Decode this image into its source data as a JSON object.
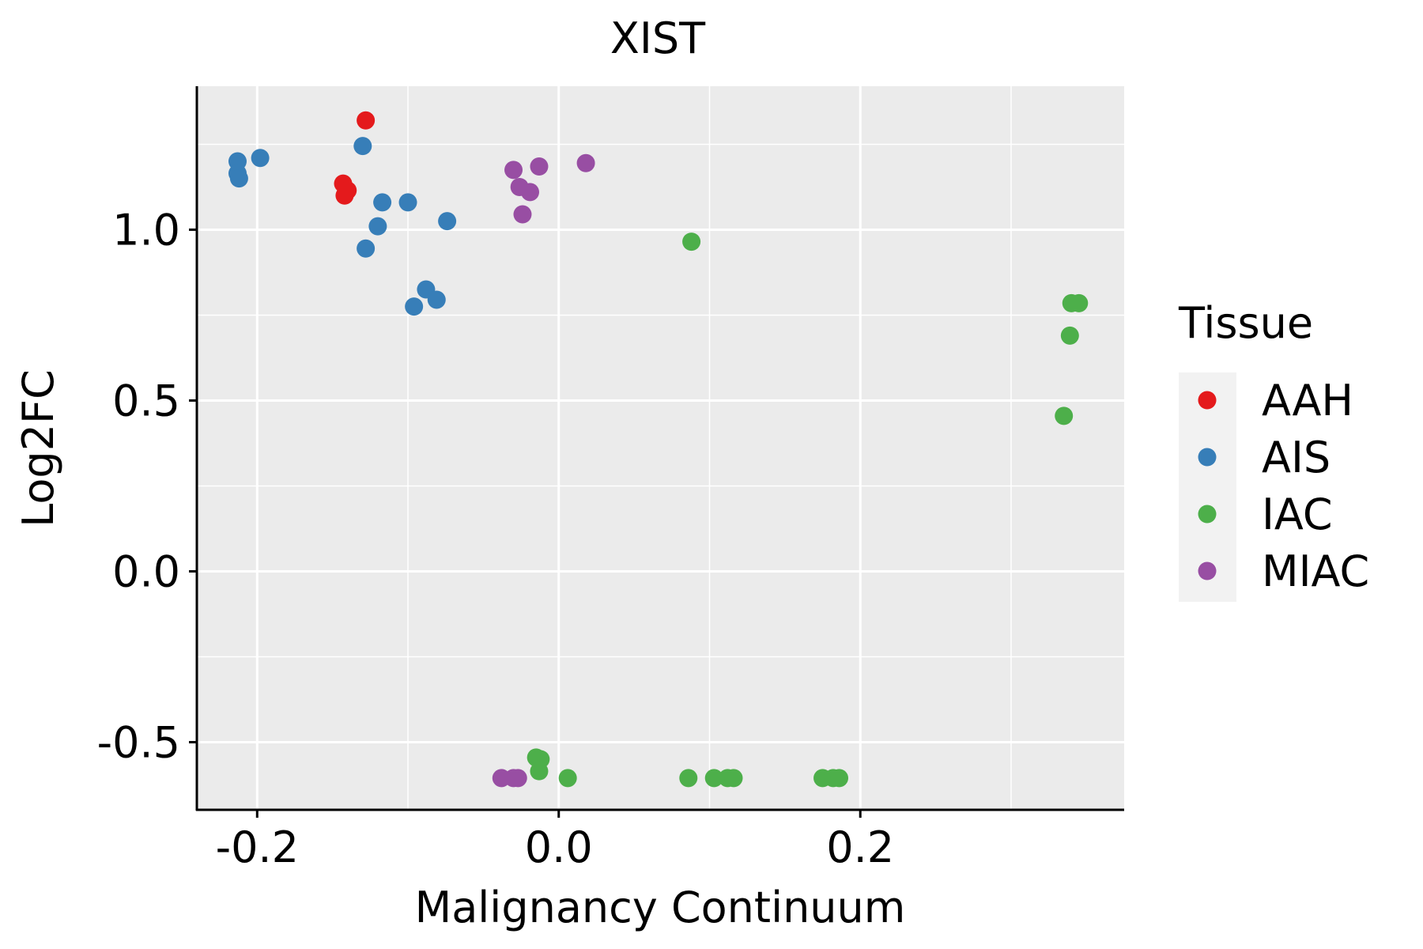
{
  "chart_data": {
    "type": "scatter",
    "title": "XIST",
    "xlabel": "Malignancy Continuum",
    "ylabel": "Log2FC",
    "xlim": [
      -0.24,
      0.375
    ],
    "ylim": [
      -0.698,
      1.42
    ],
    "xticks": [
      {
        "value": -0.2,
        "label": "-0.2"
      },
      {
        "value": 0.0,
        "label": "0.0"
      },
      {
        "value": 0.2,
        "label": "0.2"
      }
    ],
    "xminor": [
      -0.1,
      0.1,
      0.3
    ],
    "yticks": [
      {
        "value": -0.5,
        "label": "-0.5"
      },
      {
        "value": 0.0,
        "label": "0.0"
      },
      {
        "value": 0.5,
        "label": "0.5"
      },
      {
        "value": 1.0,
        "label": "1.0"
      }
    ],
    "yminor": [
      -0.25,
      0.25,
      0.75,
      1.25
    ],
    "grid": true,
    "legend": {
      "title": "Tissue",
      "position": "right"
    },
    "series": [
      {
        "name": "AAH",
        "color": "#e41a1c",
        "points": [
          {
            "x": -0.128,
            "y": 1.32
          },
          {
            "x": -0.143,
            "y": 1.135
          },
          {
            "x": -0.14,
            "y": 1.115
          },
          {
            "x": -0.142,
            "y": 1.1
          }
        ]
      },
      {
        "name": "AIS",
        "color": "#377eb8",
        "points": [
          {
            "x": -0.213,
            "y": 1.2
          },
          {
            "x": -0.213,
            "y": 1.165
          },
          {
            "x": -0.212,
            "y": 1.15
          },
          {
            "x": -0.198,
            "y": 1.21
          },
          {
            "x": -0.13,
            "y": 1.245
          },
          {
            "x": -0.117,
            "y": 1.08
          },
          {
            "x": -0.1,
            "y": 1.08
          },
          {
            "x": -0.12,
            "y": 1.01
          },
          {
            "x": -0.128,
            "y": 0.945
          },
          {
            "x": -0.074,
            "y": 1.025
          },
          {
            "x": -0.088,
            "y": 0.825
          },
          {
            "x": -0.081,
            "y": 0.795
          },
          {
            "x": -0.096,
            "y": 0.775
          }
        ]
      },
      {
        "name": "IAC",
        "color": "#4daf4a",
        "points": [
          {
            "x": 0.088,
            "y": 0.965
          },
          {
            "x": 0.34,
            "y": 0.785
          },
          {
            "x": 0.345,
            "y": 0.785
          },
          {
            "x": 0.339,
            "y": 0.69
          },
          {
            "x": 0.335,
            "y": 0.455
          },
          {
            "x": -0.015,
            "y": -0.545
          },
          {
            "x": -0.012,
            "y": -0.55
          },
          {
            "x": -0.013,
            "y": -0.585
          },
          {
            "x": 0.006,
            "y": -0.605
          },
          {
            "x": 0.086,
            "y": -0.605
          },
          {
            "x": 0.103,
            "y": -0.605
          },
          {
            "x": 0.112,
            "y": -0.605
          },
          {
            "x": 0.116,
            "y": -0.605
          },
          {
            "x": 0.175,
            "y": -0.605
          },
          {
            "x": 0.182,
            "y": -0.605
          },
          {
            "x": 0.186,
            "y": -0.605
          }
        ]
      },
      {
        "name": "MIAC",
        "color": "#984ea3",
        "points": [
          {
            "x": -0.03,
            "y": 1.175
          },
          {
            "x": -0.013,
            "y": 1.185
          },
          {
            "x": 0.018,
            "y": 1.195
          },
          {
            "x": -0.026,
            "y": 1.125
          },
          {
            "x": -0.019,
            "y": 1.11
          },
          {
            "x": -0.024,
            "y": 1.045
          },
          {
            "x": -0.038,
            "y": -0.605
          },
          {
            "x": -0.03,
            "y": -0.605
          },
          {
            "x": -0.027,
            "y": -0.605
          }
        ]
      }
    ]
  }
}
